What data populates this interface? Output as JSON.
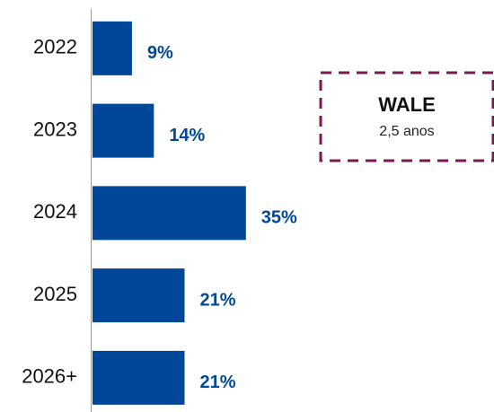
{
  "chart_data": {
    "type": "bar",
    "orientation": "horizontal",
    "categories": [
      "2022",
      "2023",
      "2024",
      "2025",
      "2026+"
    ],
    "values": [
      9,
      14,
      35,
      21,
      21
    ],
    "value_labels": [
      "9%",
      "14%",
      "35%",
      "21%",
      "21%"
    ],
    "color": "#00479a",
    "annotation": {
      "title": "WALE",
      "text": "2,5 anos",
      "color": "#7a1a4c"
    }
  }
}
